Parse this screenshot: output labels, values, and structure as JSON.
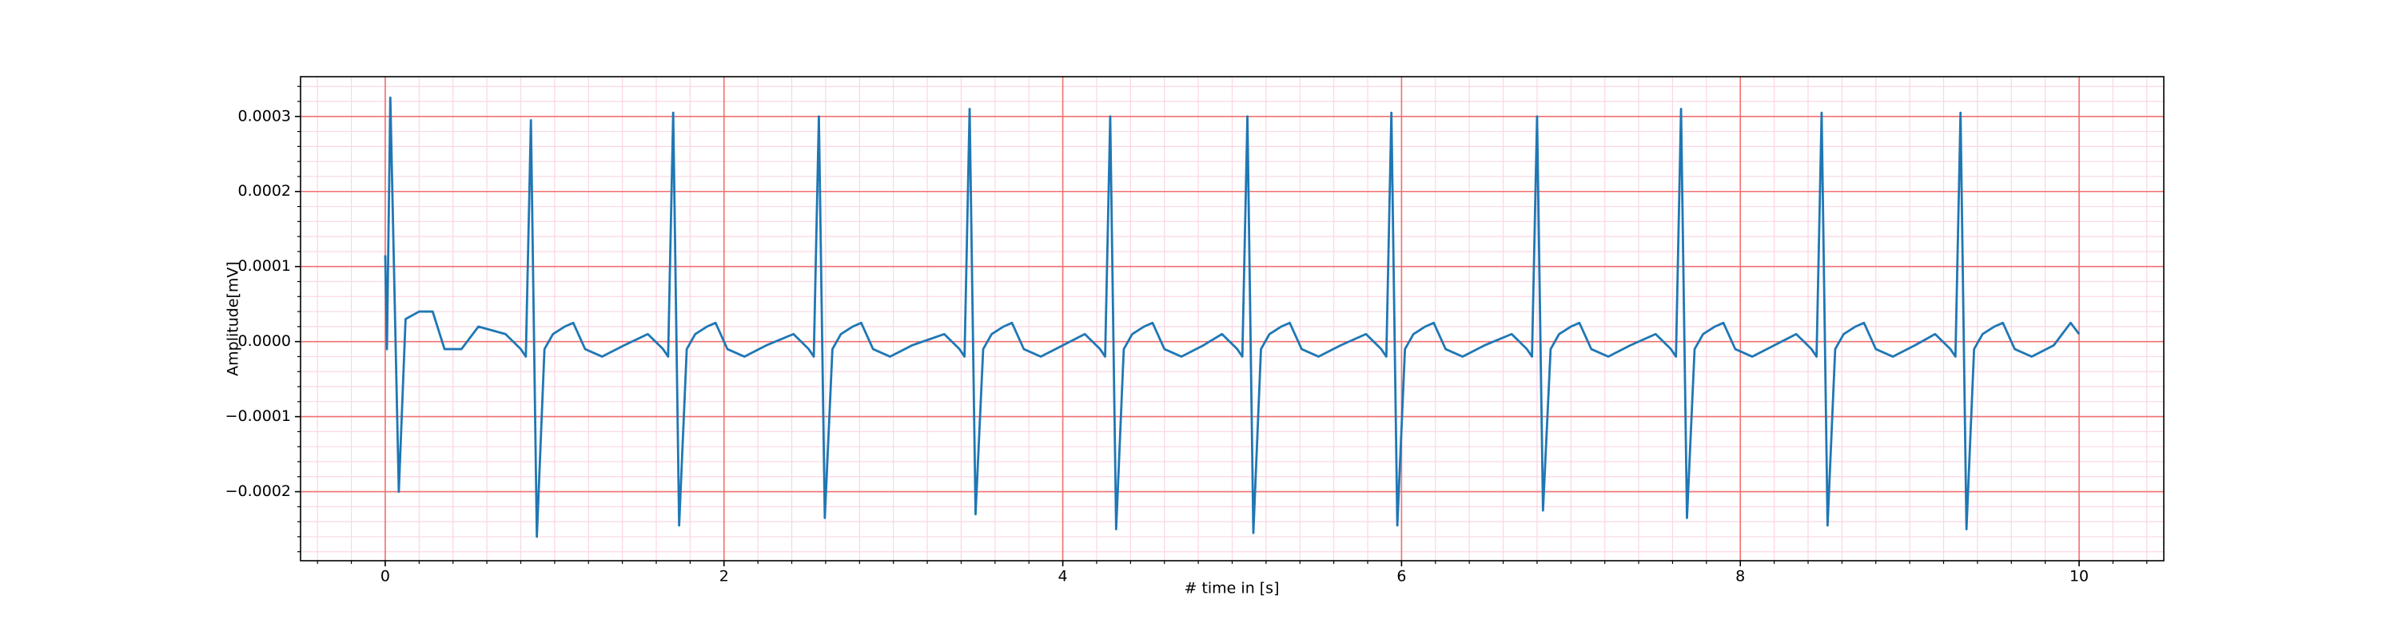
{
  "chart_data": {
    "type": "line",
    "xlabel": "# time in [s]",
    "ylabel": "Amplitude[mV]",
    "color": "#1f77b4",
    "grid": true,
    "grid_color": "#f07070",
    "minor_grid_color": "#fbd6e3",
    "xlim": [
      -0.5,
      10.5
    ],
    "ylim": [
      -0.000292,
      0.000353
    ],
    "xticks": [
      0,
      2,
      4,
      6,
      8,
      10
    ],
    "yticks": [
      {
        "value": -0.0002,
        "label": "−0.0002"
      },
      {
        "value": -0.0001,
        "label": "−0.0001"
      },
      {
        "value": 0,
        "label": "0.0000"
      },
      {
        "value": 0.0001,
        "label": "0.0001"
      },
      {
        "value": 0.0002,
        "label": "0.0002"
      },
      {
        "value": 0.0003,
        "label": "0.0003"
      }
    ],
    "xminorticks": [
      -0.4,
      -0.2,
      0,
      0.2,
      0.4,
      0.6,
      0.8,
      1,
      1.2,
      1.4,
      1.6,
      1.8,
      2,
      2.2,
      2.4,
      2.6,
      2.8,
      3,
      3.2,
      3.4,
      3.6,
      3.8,
      4,
      4.2,
      4.4,
      4.6,
      4.8,
      5,
      5.2,
      5.4,
      5.6,
      5.8,
      6,
      6.2,
      6.4,
      6.6,
      6.8,
      7,
      7.2,
      7.4,
      7.6,
      7.8,
      8,
      8.2,
      8.4,
      8.6,
      8.8,
      9,
      9.2,
      9.4,
      9.6,
      9.8,
      10,
      10.2,
      10.4
    ],
    "yminorticks": [
      -0.00028,
      -0.00026,
      -0.00024,
      -0.00022,
      -0.0002,
      -0.00018,
      -0.00016,
      -0.00014,
      -0.00012,
      -0.0001,
      -8e-05,
      -6e-05,
      -4e-05,
      -2e-05,
      0,
      2e-05,
      4e-05,
      6e-05,
      8e-05,
      0.0001,
      0.00012,
      0.00014,
      0.00016,
      0.00018,
      0.0002,
      0.00022,
      0.00024,
      0.00026,
      0.00028,
      0.0003,
      0.00032,
      0.00034
    ],
    "x": [
      0,
      0.01,
      0.03,
      0.08,
      0.12,
      0.2,
      0.28,
      0.35,
      0.45,
      0.55,
      0.71,
      0.8,
      0.83,
      0.86,
      0.895,
      0.94,
      0.99,
      1.06,
      1.11,
      1.18,
      1.28,
      1.41,
      1.55,
      1.64,
      1.67,
      1.7,
      1.735,
      1.78,
      1.83,
      1.9,
      1.95,
      2.02,
      2.12,
      2.25,
      2.41,
      2.5,
      2.53,
      2.56,
      2.595,
      2.64,
      2.69,
      2.76,
      2.81,
      2.88,
      2.98,
      3.11,
      3.3,
      3.39,
      3.42,
      3.45,
      3.485,
      3.53,
      3.58,
      3.65,
      3.7,
      3.77,
      3.87,
      4.0,
      4.13,
      4.22,
      4.25,
      4.28,
      4.315,
      4.36,
      4.41,
      4.48,
      4.53,
      4.6,
      4.7,
      4.83,
      4.94,
      5.03,
      5.06,
      5.09,
      5.125,
      5.17,
      5.22,
      5.29,
      5.34,
      5.41,
      5.51,
      5.64,
      5.79,
      5.88,
      5.91,
      5.94,
      5.975,
      6.02,
      6.07,
      6.14,
      6.19,
      6.26,
      6.36,
      6.49,
      6.65,
      6.74,
      6.77,
      6.8,
      6.835,
      6.88,
      6.93,
      7.0,
      7.05,
      7.12,
      7.22,
      7.35,
      7.5,
      7.59,
      7.62,
      7.65,
      7.685,
      7.73,
      7.78,
      7.85,
      7.9,
      7.97,
      8.07,
      8.2,
      8.33,
      8.42,
      8.45,
      8.48,
      8.515,
      8.56,
      8.61,
      8.68,
      8.73,
      8.8,
      8.9,
      9.03,
      9.15,
      9.24,
      9.27,
      9.3,
      9.335,
      9.38,
      9.43,
      9.5,
      9.55,
      9.62,
      9.72,
      9.85,
      9.95,
      10.0
    ],
    "values": [
      0.000115,
      -1e-05,
      0.000325,
      -0.0002,
      3e-05,
      4e-05,
      4e-05,
      -1e-05,
      -1e-05,
      2e-05,
      1e-05,
      -1e-05,
      -2e-05,
      0.000295,
      -0.00026,
      -1e-05,
      1e-05,
      2e-05,
      2.5e-05,
      -1e-05,
      -2e-05,
      -5e-06,
      1e-05,
      -1e-05,
      -2e-05,
      0.000305,
      -0.000245,
      -1e-05,
      1e-05,
      2e-05,
      2.5e-05,
      -1e-05,
      -2e-05,
      -5e-06,
      1e-05,
      -1e-05,
      -2e-05,
      0.0003,
      -0.000235,
      -1e-05,
      1e-05,
      2e-05,
      2.5e-05,
      -1e-05,
      -2e-05,
      -5e-06,
      1e-05,
      -1e-05,
      -2e-05,
      0.00031,
      -0.00023,
      -1e-05,
      1e-05,
      2e-05,
      2.5e-05,
      -1e-05,
      -2e-05,
      -5e-06,
      1e-05,
      -1e-05,
      -2e-05,
      0.0003,
      -0.00025,
      -1e-05,
      1e-05,
      2e-05,
      2.5e-05,
      -1e-05,
      -2e-05,
      -5e-06,
      1e-05,
      -1e-05,
      -2e-05,
      0.0003,
      -0.000255,
      -1e-05,
      1e-05,
      2e-05,
      2.5e-05,
      -1e-05,
      -2e-05,
      -5e-06,
      1e-05,
      -1e-05,
      -2e-05,
      0.000305,
      -0.000245,
      -1e-05,
      1e-05,
      2e-05,
      2.5e-05,
      -1e-05,
      -2e-05,
      -5e-06,
      1e-05,
      -1e-05,
      -2e-05,
      0.0003,
      -0.000225,
      -1e-05,
      1e-05,
      2e-05,
      2.5e-05,
      -1e-05,
      -2e-05,
      -5e-06,
      1e-05,
      -1e-05,
      -2e-05,
      0.00031,
      -0.000235,
      -1e-05,
      1e-05,
      2e-05,
      2.5e-05,
      -1e-05,
      -2e-05,
      -5e-06,
      1e-05,
      -1e-05,
      -2e-05,
      0.000305,
      -0.000245,
      -1e-05,
      1e-05,
      2e-05,
      2.5e-05,
      -1e-05,
      -2e-05,
      -5e-06,
      1e-05,
      -1e-05,
      -2e-05,
      0.000305,
      -0.00025,
      -1e-05,
      1e-05,
      2e-05,
      2.5e-05,
      -1e-05,
      -2e-05,
      -5e-06,
      2.5e-05,
      1e-05
    ]
  }
}
